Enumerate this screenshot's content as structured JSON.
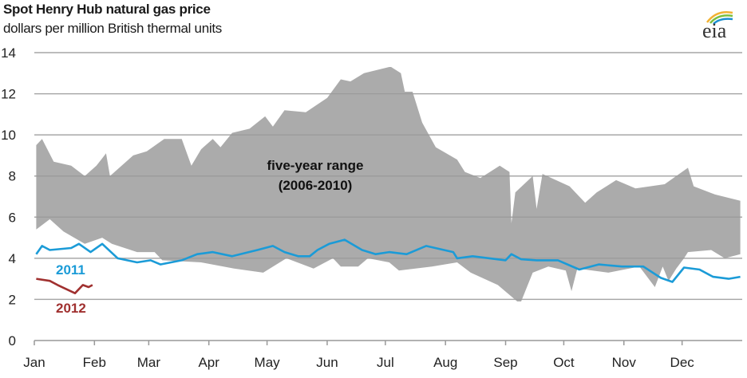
{
  "header": {
    "title": "Spot Henry Hub natural gas price",
    "subtitle": "dollars per million British thermal units",
    "logo_text": "eia"
  },
  "chart_data": {
    "type": "area",
    "title": "Spot Henry Hub natural gas price",
    "ylabel": "dollars per million British thermal units",
    "xlabel": "",
    "ylim": [
      0,
      14
    ],
    "yticks": [
      "0",
      "2",
      "4",
      "6",
      "8",
      "10",
      "12",
      "14"
    ],
    "xticks": [
      "Jan",
      "Feb",
      "Mar",
      "Apr",
      "May",
      "Jun",
      "Jul",
      "Aug",
      "Sep",
      "Oct",
      "Nov",
      "Dec"
    ],
    "grid": true,
    "colors": {
      "range": "#ababab",
      "2011": "#1b9bd7",
      "2012": "#a0302f",
      "grid": "#bdbdbd"
    },
    "range": {
      "label": "five-year range",
      "label2": "(2006-2010)",
      "upper": [
        [
          "01-02",
          9.5
        ],
        [
          "01-05",
          9.8
        ],
        [
          "01-11",
          8.7
        ],
        [
          "01-20",
          8.5
        ],
        [
          "01-27",
          8.0
        ],
        [
          "02-02",
          8.5
        ],
        [
          "02-07",
          9.1
        ],
        [
          "02-09",
          8.0
        ],
        [
          "02-21",
          9.0
        ],
        [
          "02-28",
          9.2
        ],
        [
          "03-09",
          9.8
        ],
        [
          "03-18",
          9.8
        ],
        [
          "03-23",
          8.5
        ],
        [
          "03-28",
          9.3
        ],
        [
          "04-03",
          9.8
        ],
        [
          "04-07",
          9.4
        ],
        [
          "04-13",
          10.1
        ],
        [
          "04-22",
          10.3
        ],
        [
          "04-30",
          10.9
        ],
        [
          "05-04",
          10.4
        ],
        [
          "05-10",
          11.2
        ],
        [
          "05-21",
          11.1
        ],
        [
          "06-01",
          11.8
        ],
        [
          "06-08",
          12.7
        ],
        [
          "06-13",
          12.6
        ],
        [
          "06-20",
          13.0
        ],
        [
          "07-03",
          13.3
        ],
        [
          "07-04",
          13.3
        ],
        [
          "07-09",
          13.0
        ],
        [
          "07-11",
          12.1
        ],
        [
          "07-15",
          12.1
        ],
        [
          "07-20",
          10.6
        ],
        [
          "07-27",
          9.4
        ],
        [
          "08-07",
          8.8
        ],
        [
          "08-11",
          8.2
        ],
        [
          "08-19",
          7.9
        ],
        [
          "08-29",
          8.5
        ],
        [
          "09-03",
          8.2
        ],
        [
          "09-04",
          5.7
        ],
        [
          "09-06",
          7.2
        ],
        [
          "09-15",
          8.0
        ],
        [
          "09-17",
          6.4
        ],
        [
          "09-20",
          8.1
        ],
        [
          "10-04",
          7.5
        ],
        [
          "10-12",
          6.7
        ],
        [
          "10-18",
          7.2
        ],
        [
          "10-28",
          7.8
        ],
        [
          "11-07",
          7.4
        ],
        [
          "11-22",
          7.6
        ],
        [
          "12-04",
          8.4
        ],
        [
          "12-07",
          7.5
        ],
        [
          "12-18",
          7.1
        ],
        [
          "12-31",
          6.8
        ]
      ],
      "lower": [
        [
          "01-02",
          5.4
        ],
        [
          "01-09",
          5.9
        ],
        [
          "01-16",
          5.3
        ],
        [
          "01-27",
          4.7
        ],
        [
          "02-05",
          5.0
        ],
        [
          "02-10",
          4.7
        ],
        [
          "02-23",
          4.3
        ],
        [
          "03-04",
          4.3
        ],
        [
          "03-08",
          3.9
        ],
        [
          "03-28",
          3.8
        ],
        [
          "04-14",
          3.5
        ],
        [
          "04-29",
          3.3
        ],
        [
          "05-11",
          4.0
        ],
        [
          "05-25",
          3.5
        ],
        [
          "06-04",
          4.0
        ],
        [
          "06-08",
          3.6
        ],
        [
          "06-17",
          3.6
        ],
        [
          "06-22",
          4.0
        ],
        [
          "07-03",
          3.8
        ],
        [
          "07-08",
          3.4
        ],
        [
          "07-25",
          3.6
        ],
        [
          "08-07",
          3.8
        ],
        [
          "08-14",
          3.3
        ],
        [
          "08-28",
          2.7
        ],
        [
          "09-07",
          1.9
        ],
        [
          "09-09",
          1.9
        ],
        [
          "09-15",
          3.3
        ],
        [
          "09-23",
          3.6
        ],
        [
          "10-02",
          3.4
        ],
        [
          "10-05",
          2.4
        ],
        [
          "10-08",
          3.5
        ],
        [
          "10-24",
          3.3
        ],
        [
          "11-09",
          3.6
        ],
        [
          "11-17",
          2.6
        ],
        [
          "11-21",
          3.6
        ],
        [
          "11-24",
          2.9
        ],
        [
          "11-28",
          3.5
        ],
        [
          "12-02",
          4.0
        ],
        [
          "12-04",
          4.3
        ],
        [
          "12-16",
          4.4
        ],
        [
          "12-23",
          4.0
        ],
        [
          "12-31",
          4.2
        ]
      ]
    },
    "series": [
      {
        "name": "2011",
        "values": [
          [
            "01-02",
            4.2
          ],
          [
            "01-05",
            4.6
          ],
          [
            "01-09",
            4.4
          ],
          [
            "01-20",
            4.5
          ],
          [
            "01-24",
            4.7
          ],
          [
            "01-30",
            4.3
          ],
          [
            "02-05",
            4.7
          ],
          [
            "02-13",
            4.0
          ],
          [
            "02-23",
            3.8
          ],
          [
            "03-02",
            3.9
          ],
          [
            "03-07",
            3.7
          ],
          [
            "03-18",
            3.9
          ],
          [
            "03-26",
            4.2
          ],
          [
            "04-03",
            4.3
          ],
          [
            "04-13",
            4.1
          ],
          [
            "04-26",
            4.4
          ],
          [
            "05-04",
            4.6
          ],
          [
            "05-10",
            4.3
          ],
          [
            "05-17",
            4.1
          ],
          [
            "05-23",
            4.1
          ],
          [
            "05-27",
            4.4
          ],
          [
            "06-02",
            4.7
          ],
          [
            "06-10",
            4.9
          ],
          [
            "06-19",
            4.4
          ],
          [
            "06-26",
            4.2
          ],
          [
            "07-03",
            4.3
          ],
          [
            "07-12",
            4.2
          ],
          [
            "07-22",
            4.6
          ],
          [
            "08-05",
            4.3
          ],
          [
            "08-07",
            4.0
          ],
          [
            "08-15",
            4.1
          ],
          [
            "09-01",
            3.9
          ],
          [
            "09-04",
            4.2
          ],
          [
            "09-09",
            3.95
          ],
          [
            "09-17",
            3.9
          ],
          [
            "09-28",
            3.9
          ],
          [
            "10-09",
            3.45
          ],
          [
            "10-19",
            3.7
          ],
          [
            "10-31",
            3.6
          ],
          [
            "11-11",
            3.6
          ],
          [
            "11-20",
            3.05
          ],
          [
            "11-26",
            2.85
          ],
          [
            "12-02",
            3.55
          ],
          [
            "12-10",
            3.45
          ],
          [
            "12-17",
            3.1
          ],
          [
            "12-25",
            3.0
          ],
          [
            "12-31",
            3.1
          ]
        ]
      },
      {
        "name": "2012",
        "values": [
          [
            "01-02",
            3.0
          ],
          [
            "01-09",
            2.9
          ],
          [
            "01-13",
            2.7
          ],
          [
            "01-22",
            2.3
          ],
          [
            "01-26",
            2.7
          ],
          [
            "01-29",
            2.6
          ],
          [
            "01-31",
            2.7
          ]
        ]
      }
    ]
  }
}
